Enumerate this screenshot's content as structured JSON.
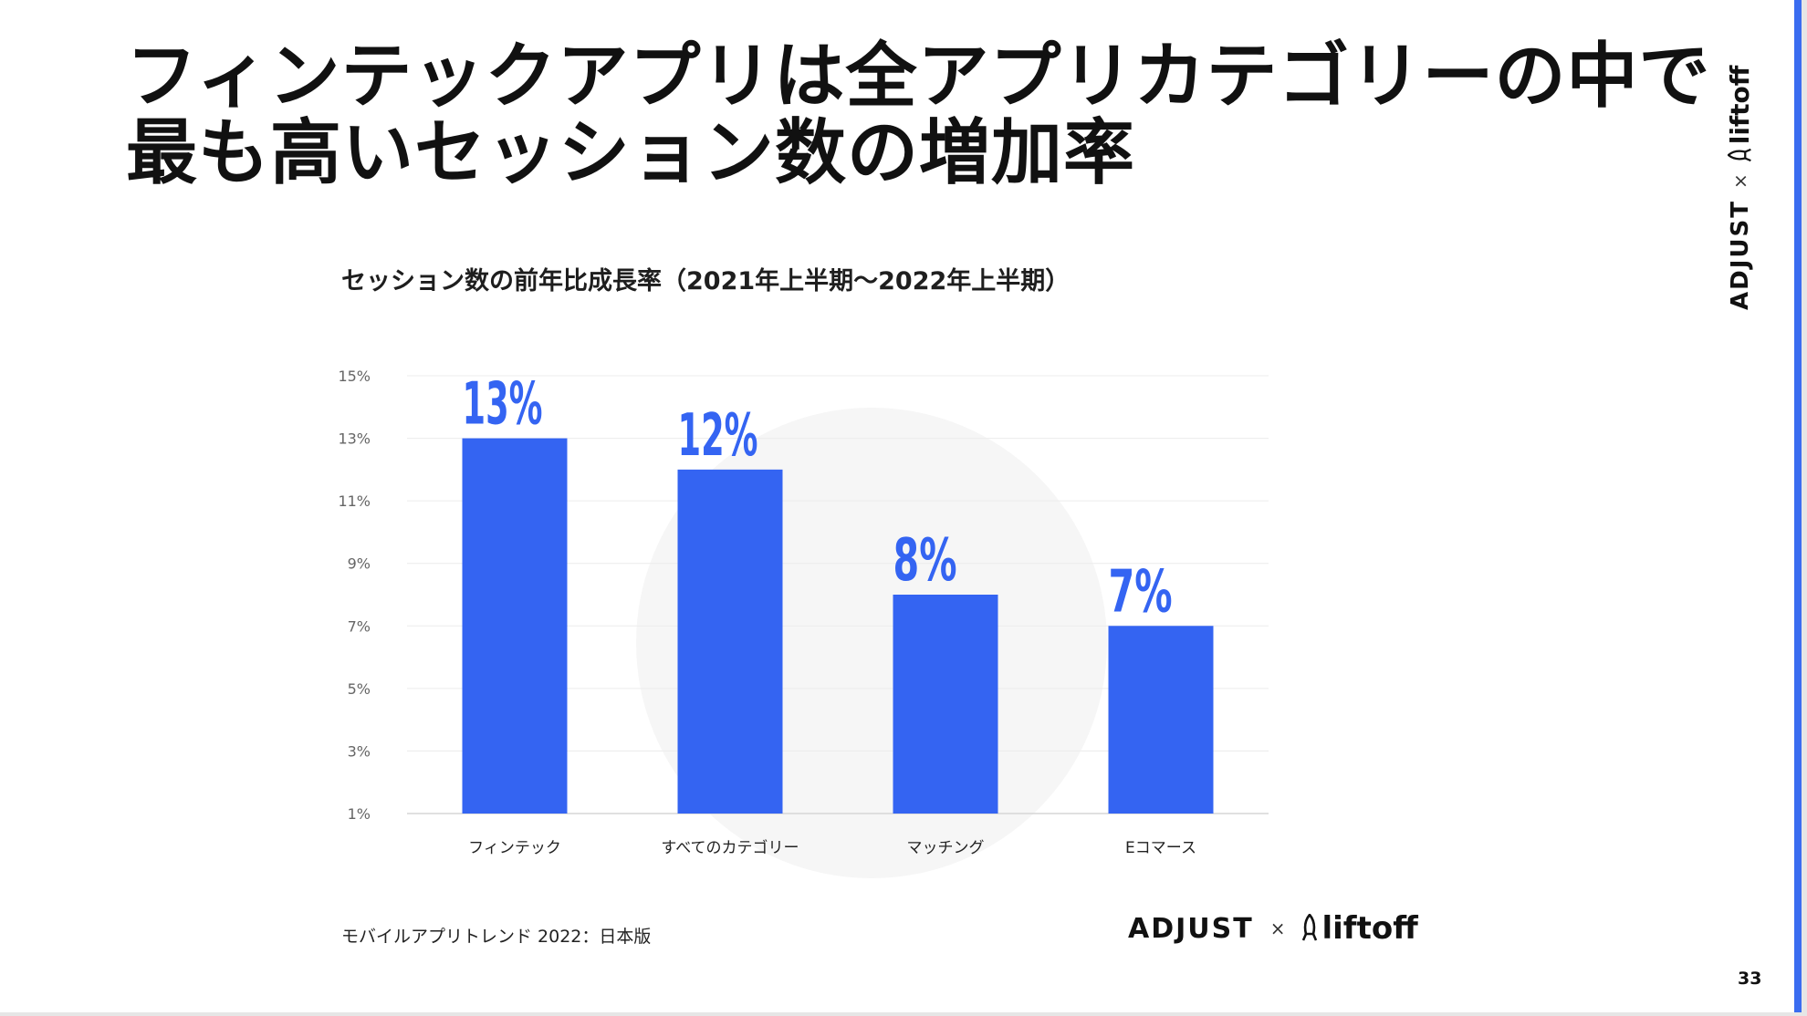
{
  "slide": {
    "title_lines": [
      "フィンテックアプリは全アプリカテゴリーの中で",
      "最も高いセッション数の増加率"
    ],
    "source": "モバイルアプリトレンド 2022：日本版",
    "page_number": "33",
    "brand": {
      "adjust": "ADJUST",
      "separator": "×",
      "liftoff": "liftoff"
    },
    "colors": {
      "accent": "#3a6cf0",
      "bar": "#3464f2",
      "label": "#3464f2"
    }
  },
  "chart_data": {
    "type": "bar",
    "title": "セッション数の前年比成長率（2021年上半期〜2022年上半期）",
    "categories": [
      "フィンテック",
      "すべてのカテゴリー",
      "マッチング",
      "Eコマース"
    ],
    "values": [
      13,
      12,
      8,
      7
    ],
    "data_labels": [
      "13%",
      "12%",
      "8%",
      "7%"
    ],
    "y_ticks": [
      "1%",
      "3%",
      "5%",
      "7%",
      "9%",
      "11%",
      "13%",
      "15%"
    ],
    "ylim": [
      1,
      15
    ],
    "grid": true,
    "xlabel": "",
    "ylabel": ""
  }
}
